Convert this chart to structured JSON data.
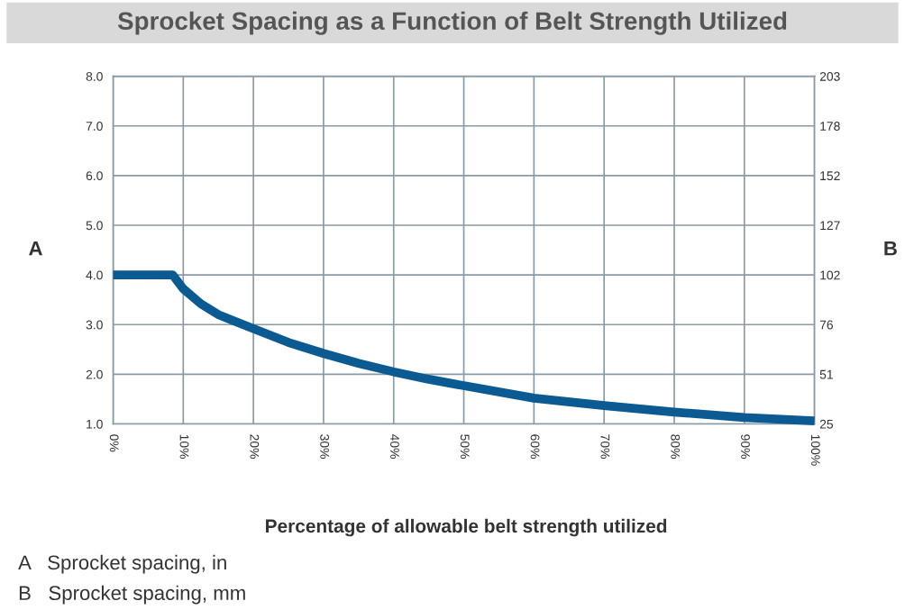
{
  "chart_data": {
    "type": "line",
    "title": "Sprocket Spacing as a Function of Belt Strength Utilized",
    "xlabel": "Percentage of allowable belt strength utilized",
    "ylabel": "A",
    "y2label": "B",
    "x": [
      0,
      8.5,
      10,
      12.5,
      15,
      20,
      25,
      30,
      35,
      40,
      45,
      50,
      60,
      70,
      80,
      90,
      100
    ],
    "series": [
      {
        "color": "#0b5a92",
        "values": [
          4.0,
          4.0,
          3.72,
          3.42,
          3.2,
          2.92,
          2.64,
          2.42,
          2.22,
          2.05,
          1.9,
          1.77,
          1.52,
          1.37,
          1.24,
          1.13,
          1.06
        ]
      }
    ],
    "xlim": [
      0,
      100
    ],
    "xticks": [
      {
        "value": 0,
        "label": "0%"
      },
      {
        "value": 10,
        "label": "10%"
      },
      {
        "value": 20,
        "label": "20%"
      },
      {
        "value": 30,
        "label": "30%"
      },
      {
        "value": 40,
        "label": "40%"
      },
      {
        "value": 50,
        "label": "50%"
      },
      {
        "value": 60,
        "label": "60%"
      },
      {
        "value": 70,
        "label": "70%"
      },
      {
        "value": 80,
        "label": "80%"
      },
      {
        "value": 90,
        "label": "90%"
      },
      {
        "value": 100,
        "label": "100%"
      }
    ],
    "ylim": [
      1.0,
      8.0
    ],
    "yticks": [
      {
        "value": 1,
        "label": "1.0"
      },
      {
        "value": 2,
        "label": "2.0"
      },
      {
        "value": 3,
        "label": "3.0"
      },
      {
        "value": 4,
        "label": "4.0"
      },
      {
        "value": 5,
        "label": "5.0"
      },
      {
        "value": 6,
        "label": "6.0"
      },
      {
        "value": 7,
        "label": "7.0"
      },
      {
        "value": 8,
        "label": "8.0"
      }
    ],
    "y2lim": [
      25.4,
      203.2
    ],
    "y2ticks": [
      {
        "value": 25.4,
        "label": "25"
      },
      {
        "value": 50.8,
        "label": "51"
      },
      {
        "value": 76.2,
        "label": "76"
      },
      {
        "value": 101.6,
        "label": "102"
      },
      {
        "value": 127.0,
        "label": "127"
      },
      {
        "value": 152.4,
        "label": "152"
      },
      {
        "value": 177.8,
        "label": "178"
      },
      {
        "value": 203.2,
        "label": "203"
      }
    ],
    "grid": true,
    "marker": "none",
    "line_style": "solid",
    "annotations": [
      "A   Sprocket spacing, in",
      "B   Sprocket spacing, mm"
    ]
  }
}
